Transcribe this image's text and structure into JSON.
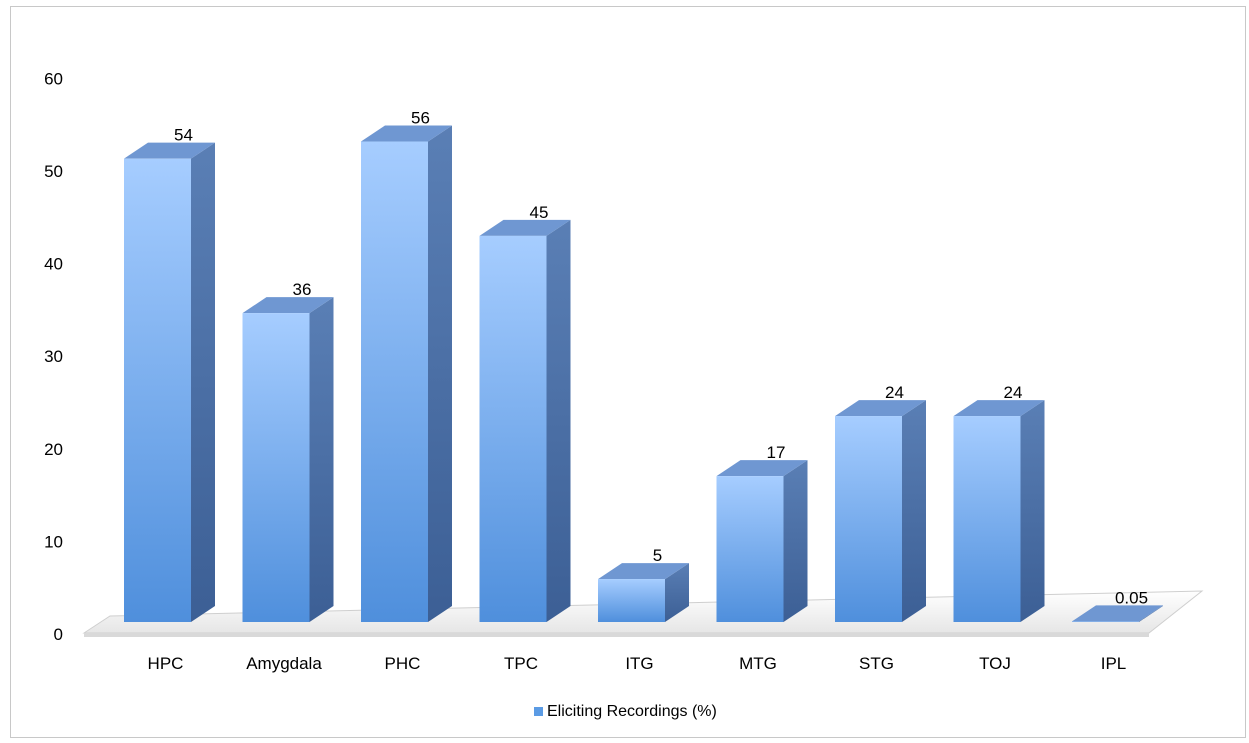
{
  "chart_data": {
    "type": "bar",
    "categories": [
      "HPC",
      "Amygdala",
      "PHC",
      "TPC",
      "ITG",
      "MTG",
      "STG",
      "TOJ",
      "IPL"
    ],
    "series": [
      {
        "name": "Eliciting Recordings (%)",
        "values": [
          54,
          36,
          56,
          45,
          5,
          17,
          24,
          24,
          0.05
        ],
        "value_labels": [
          "54",
          "36",
          "56",
          "45",
          "5",
          "17",
          "24",
          "24",
          "0.05"
        ]
      }
    ],
    "ylim": [
      0,
      60
    ],
    "yticks": [
      0,
      10,
      20,
      30,
      40,
      50,
      60
    ],
    "grid": false,
    "legend_position": "bottom",
    "style": "3d-column",
    "colors": {
      "front_light": "#a6cdff",
      "front_dark": "#4f8fdc",
      "side": "#46699f",
      "top": "#6f97d2",
      "floor": "#efefef"
    }
  }
}
